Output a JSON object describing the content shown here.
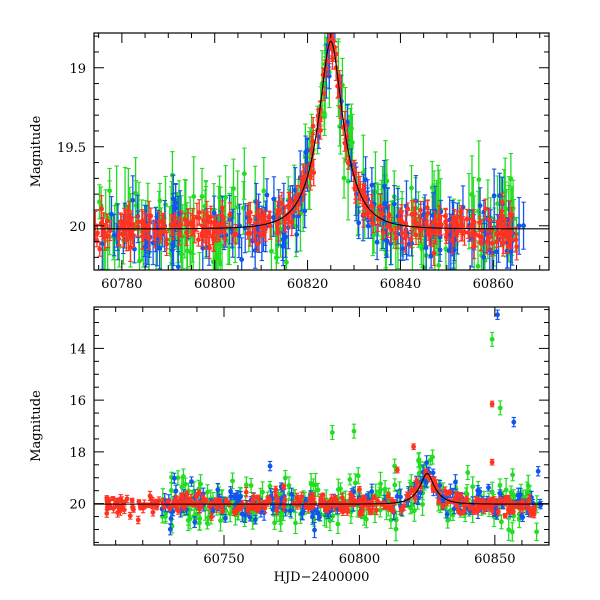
{
  "chart_data": [
    {
      "type": "scatter",
      "panel": "top",
      "xlabel": "",
      "ylabel": "Magnitude",
      "xlim": [
        60774,
        60872
      ],
      "ylim": [
        20.28,
        18.78
      ],
      "y_inverted": true,
      "x_ticks": [
        60780,
        60800,
        60820,
        60840,
        60860
      ],
      "y_ticks": [
        19,
        19.5,
        20
      ],
      "grid": false,
      "legend": "none",
      "event": {
        "t0": 60825,
        "u0": 0.35,
        "tE": 5.5,
        "baseline": 20.02,
        "blend": 1.0
      },
      "series": [
        {
          "color": "#22dd22",
          "error_bar": 0.17,
          "x_range": [
            60775,
            60866
          ],
          "n_points": 230,
          "scatter": 0.14
        },
        {
          "color": "#1155ee",
          "error_bar": 0.12,
          "x_range": [
            60775,
            60867
          ],
          "n_points": 190,
          "scatter": 0.1
        },
        {
          "color": "#ff3322",
          "error_bar": 0.06,
          "x_range": [
            60774,
            60866
          ],
          "n_points": 330,
          "scatter": 0.06
        }
      ]
    },
    {
      "type": "scatter",
      "panel": "bottom",
      "xlabel": "HJD−2400000",
      "ylabel": "Magnitude",
      "xlim": [
        60702,
        60870
      ],
      "ylim": [
        21.6,
        12.4
      ],
      "y_inverted": true,
      "x_ticks": [
        60750,
        60800,
        60850
      ],
      "y_ticks": [
        14,
        16,
        18,
        20
      ],
      "grid": false,
      "legend": "none",
      "event": {
        "t0": 60825,
        "u0": 0.35,
        "tE": 5.5,
        "baseline": 20.02,
        "blend": 1.0
      },
      "series": [
        {
          "color": "#22dd22",
          "error_bar": 0.3,
          "x_range": [
            60727,
            60866
          ],
          "n_points": 260,
          "scatter": 0.45,
          "outliers": [
            {
              "x": 60790,
              "y": 17.25
            },
            {
              "x": 60798,
              "y": 17.2
            },
            {
              "x": 60813,
              "y": 18.55
            },
            {
              "x": 60822,
              "y": 18.3
            },
            {
              "x": 60827,
              "y": 18.2
            },
            {
              "x": 60840,
              "y": 18.8
            },
            {
              "x": 60849,
              "y": 13.65
            },
            {
              "x": 60852,
              "y": 16.3
            },
            {
              "x": 60733,
              "y": 19.0
            },
            {
              "x": 60760,
              "y": 19.3
            }
          ]
        },
        {
          "color": "#1155ee",
          "error_bar": 0.2,
          "x_range": [
            60727,
            60867
          ],
          "n_points": 200,
          "scatter": 0.3,
          "outliers": [
            {
              "x": 60851,
              "y": 12.7
            },
            {
              "x": 60857,
              "y": 16.85
            },
            {
              "x": 60767,
              "y": 18.55
            },
            {
              "x": 60738,
              "y": 19.15
            },
            {
              "x": 60866,
              "y": 18.75
            }
          ]
        },
        {
          "color": "#ff3322",
          "error_bar": 0.12,
          "x_range": [
            60706,
            60866
          ],
          "n_points": 330,
          "scatter": 0.18,
          "outliers": [
            {
              "x": 60849,
              "y": 16.15
            },
            {
              "x": 60820,
              "y": 17.8
            },
            {
              "x": 60849,
              "y": 18.4
            },
            {
              "x": 60814,
              "y": 18.7
            },
            {
              "x": 60772,
              "y": 19.35
            },
            {
              "x": 60800,
              "y": 19.45
            }
          ]
        }
      ]
    }
  ]
}
